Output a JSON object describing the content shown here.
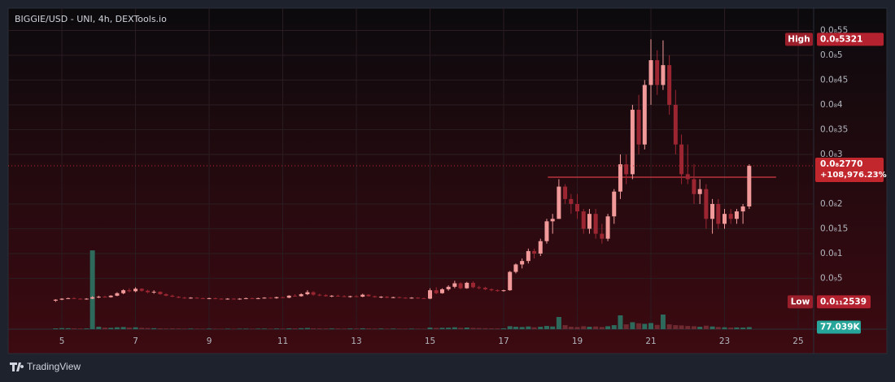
{
  "chart_data": {
    "type": "candlestick",
    "title": "BIGGIE/USD - UNI, 4h, DEXTools.io",
    "up_color": "#f29a9a",
    "down_color": "#9b2632",
    "volume_up_color": "#2e6a5c",
    "volume_down_color": "#6e2a30",
    "grid": true,
    "xlim": [
      3.54,
      25.42
    ],
    "xticks": [
      5,
      7,
      9,
      11,
      13,
      15,
      17,
      19,
      21,
      23,
      25
    ],
    "ylim": [
      -5.25e-11,
      5.95e-10
    ],
    "yticks": [
      {
        "value": 5e-11,
        "label": "0.0₉5"
      },
      {
        "value": 1e-10,
        "label": "0.0₈1"
      },
      {
        "value": 1.5e-10,
        "label": "0.0₈15"
      },
      {
        "value": 2e-10,
        "label": "0.0₈2"
      },
      {
        "value": 3e-10,
        "label": "0.0₈3"
      },
      {
        "value": 3.5e-10,
        "label": "0.0₈35"
      },
      {
        "value": 4e-10,
        "label": "0.0₈4"
      },
      {
        "value": 4.5e-10,
        "label": "0.0₈45"
      },
      {
        "value": 5e-10,
        "label": "0.0₈5"
      },
      {
        "value": 5.5e-10,
        "label": "0.0₈55"
      }
    ],
    "vlim": [
      0,
      3500000
    ],
    "x": [
      4.83,
      5,
      5.17,
      5.33,
      5.5,
      5.67,
      5.83,
      6,
      6.17,
      6.33,
      6.5,
      6.67,
      6.83,
      7,
      7.17,
      7.33,
      7.5,
      7.67,
      7.83,
      8,
      8.17,
      8.33,
      8.5,
      8.67,
      8.83,
      9,
      9.17,
      9.33,
      9.5,
      9.67,
      9.83,
      10,
      10.17,
      10.33,
      10.5,
      10.67,
      10.83,
      11,
      11.17,
      11.33,
      11.5,
      11.67,
      11.83,
      12,
      12.17,
      12.33,
      12.5,
      12.67,
      12.83,
      13,
      13.17,
      13.33,
      13.5,
      13.67,
      13.83,
      14,
      14.17,
      14.33,
      14.5,
      14.67,
      14.83,
      15,
      15.17,
      15.33,
      15.5,
      15.67,
      15.83,
      16,
      16.17,
      16.33,
      16.5,
      16.67,
      16.83,
      17,
      17.17,
      17.33,
      17.5,
      17.67,
      17.83,
      18,
      18.17,
      18.33,
      18.5,
      18.67,
      18.83,
      19,
      19.17,
      19.33,
      19.5,
      19.67,
      19.83,
      20,
      20.17,
      20.33,
      20.5,
      20.67,
      20.83,
      21,
      21.17,
      21.33,
      21.5,
      21.67,
      21.83,
      22,
      22.17,
      22.33,
      22.5,
      22.67,
      22.83,
      23,
      23.17,
      23.33,
      23.5,
      23.67
    ],
    "ohlc": [
      [
        5e-12,
        8e-12,
        2.539e-12,
        7e-12
      ],
      [
        7e-12,
        1e-11,
        6e-12,
        9e-12
      ],
      [
        9e-12,
        1.1e-11,
        8e-12,
        1e-11
      ],
      [
        1e-11,
        1.2e-11,
        8e-12,
        9e-12
      ],
      [
        9e-12,
        1e-11,
        7e-12,
        8e-12
      ],
      [
        8e-12,
        1e-11,
        7e-12,
        9e-12
      ],
      [
        9e-12,
        1.4e-11,
        8e-12,
        1.2e-11
      ],
      [
        1.2e-11,
        1.5e-11,
        1e-11,
        1.3e-11
      ],
      [
        1.3e-11,
        1.5e-11,
        1.1e-11,
        1.2e-11
      ],
      [
        1.2e-11,
        1.6e-11,
        1.1e-11,
        1.5e-11
      ],
      [
        1.5e-11,
        2.2e-11,
        1.4e-11,
        2e-11
      ],
      [
        2e-11,
        2.8e-11,
        1.8e-11,
        2.6e-11
      ],
      [
        2.6e-11,
        3e-11,
        2.2e-11,
        2.4e-11
      ],
      [
        2.4e-11,
        3.2e-11,
        2.2e-11,
        2.9e-11
      ],
      [
        2.9e-11,
        3e-11,
        2.3e-11,
        2.5e-11
      ],
      [
        2.5e-11,
        2.7e-11,
        2e-11,
        2.2e-11
      ],
      [
        2.2e-11,
        2.6e-11,
        1.9e-11,
        2.3e-11
      ],
      [
        2.3e-11,
        2.4e-11,
        1.7e-11,
        1.8e-11
      ],
      [
        1.8e-11,
        2e-11,
        1.4e-11,
        1.5e-11
      ],
      [
        1.5e-11,
        1.7e-11,
        1.2e-11,
        1.3e-11
      ],
      [
        1.3e-11,
        1.4e-11,
        1e-11,
        1.1e-11
      ],
      [
        1.1e-11,
        1.3e-11,
        9e-12,
        1e-11
      ],
      [
        1e-11,
        1.2e-11,
        9e-12,
        1.1e-11
      ],
      [
        1.1e-11,
        1.2e-11,
        9e-12,
        1e-11
      ],
      [
        1e-11,
        1.1e-11,
        8e-12,
        9e-12
      ],
      [
        9e-12,
        1.1e-11,
        8e-12,
        1e-11
      ],
      [
        1e-11,
        1.1e-11,
        8e-12,
        9e-12
      ],
      [
        9e-12,
        1e-11,
        7e-12,
        8e-12
      ],
      [
        8e-12,
        1e-11,
        7e-12,
        9e-12
      ],
      [
        9e-12,
        1e-11,
        7e-12,
        8e-12
      ],
      [
        8e-12,
        1e-11,
        7e-12,
        9e-12
      ],
      [
        9e-12,
        1.1e-11,
        8e-12,
        1e-11
      ],
      [
        1e-11,
        1.1e-11,
        8e-12,
        9e-12
      ],
      [
        9e-12,
        1.1e-11,
        8e-12,
        1e-11
      ],
      [
        1e-11,
        1.2e-11,
        9e-12,
        1.1e-11
      ],
      [
        1.1e-11,
        1.2e-11,
        9e-12,
        1e-11
      ],
      [
        1e-11,
        1.3e-11,
        9e-12,
        1.2e-11
      ],
      [
        1.2e-11,
        1.3e-11,
        1e-11,
        1.1e-11
      ],
      [
        1.1e-11,
        1.6e-11,
        1e-11,
        1.5e-11
      ],
      [
        1.5e-11,
        1.8e-11,
        1.3e-11,
        1.4e-11
      ],
      [
        1.4e-11,
        2e-11,
        1.3e-11,
        1.8e-11
      ],
      [
        1.8e-11,
        2.6e-11,
        1.6e-11,
        2.2e-11
      ],
      [
        2.2e-11,
        2.4e-11,
        1.5e-11,
        1.7e-11
      ],
      [
        1.7e-11,
        1.9e-11,
        1.4e-11,
        1.6e-11
      ],
      [
        1.6e-11,
        1.8e-11,
        1.3e-11,
        1.4e-11
      ],
      [
        1.4e-11,
        1.6e-11,
        1.2e-11,
        1.5e-11
      ],
      [
        1.5e-11,
        1.7e-11,
        1.3e-11,
        1.4e-11
      ],
      [
        1.4e-11,
        1.6e-11,
        1.2e-11,
        1.3e-11
      ],
      [
        1.3e-11,
        1.5e-11,
        1.1e-11,
        1.4e-11
      ],
      [
        1.4e-11,
        1.6e-11,
        1.2e-11,
        1.3e-11
      ],
      [
        1.3e-11,
        1.9e-11,
        1.2e-11,
        1.7e-11
      ],
      [
        1.7e-11,
        1.8e-11,
        1.3e-11,
        1.4e-11
      ],
      [
        1.4e-11,
        1.5e-11,
        1.1e-11,
        1.2e-11
      ],
      [
        1.2e-11,
        1.4e-11,
        1e-11,
        1.3e-11
      ],
      [
        1.3e-11,
        1.4e-11,
        1e-11,
        1.1e-11
      ],
      [
        1.1e-11,
        1.3e-11,
        1e-11,
        1.2e-11
      ],
      [
        1.2e-11,
        1.3e-11,
        1e-11,
        1.1e-11
      ],
      [
        1.1e-11,
        1.2e-11,
        9e-12,
        1e-11
      ],
      [
        1e-11,
        1.2e-11,
        9e-12,
        1.1e-11
      ],
      [
        1.1e-11,
        1.2e-11,
        9e-12,
        1e-11
      ],
      [
        1e-11,
        1.1e-11,
        8e-12,
        9e-12
      ],
      [
        9e-12,
        3e-11,
        8e-12,
        2.6e-11
      ],
      [
        2.6e-11,
        3.2e-11,
        1.8e-11,
        2e-11
      ],
      [
        2e-11,
        3e-11,
        1.9e-11,
        2.8e-11
      ],
      [
        2.8e-11,
        3.6e-11,
        2.5e-11,
        3.3e-11
      ],
      [
        3.3e-11,
        4.5e-11,
        3e-11,
        4e-11
      ],
      [
        4e-11,
        4.2e-11,
        2.8e-11,
        3e-11
      ],
      [
        3e-11,
        4.3e-11,
        2.9e-11,
        4.1e-11
      ],
      [
        4.1e-11,
        4.4e-11,
        3e-11,
        3.2e-11
      ],
      [
        3.2e-11,
        3.5e-11,
        2.8e-11,
        3.1e-11
      ],
      [
        3.1e-11,
        3.3e-11,
        2.6e-11,
        2.8e-11
      ],
      [
        2.8e-11,
        3e-11,
        2.4e-11,
        2.6e-11
      ],
      [
        2.6e-11,
        2.8e-11,
        2.3e-11,
        2.5e-11
      ],
      [
        2.5e-11,
        2.7e-11,
        2.3e-11,
        2.6e-11
      ],
      [
        2.6e-11,
        6.5e-11,
        2.5e-11,
        6.3e-11
      ],
      [
        6.3e-11,
        8e-11,
        6e-11,
        7.8e-11
      ],
      [
        7.8e-11,
        9e-11,
        7e-11,
        8.5e-11
      ],
      [
        8.5e-11,
        1.1e-10,
        8e-11,
        1.05e-10
      ],
      [
        1.05e-10,
        1.1e-10,
        9e-11,
        1e-10
      ],
      [
        1e-10,
        1.3e-10,
        9.5e-11,
        1.25e-10
      ],
      [
        1.25e-10,
        1.7e-10,
        1.2e-10,
        1.65e-10
      ],
      [
        1.65e-10,
        1.8e-10,
        1.4e-10,
        1.7e-10
      ],
      [
        1.7e-10,
        2.5e-10,
        1.7e-10,
        2.35e-10
      ],
      [
        2.35e-10,
        2.4e-10,
        2e-10,
        2.1e-10
      ],
      [
        2.1e-10,
        2.2e-10,
        1.8e-10,
        2e-10
      ],
      [
        2e-10,
        2.2e-10,
        1.7e-10,
        1.85e-10
      ],
      [
        1.85e-10,
        1.9e-10,
        1.4e-10,
        1.5e-10
      ],
      [
        1.5e-10,
        1.9e-10,
        1.4e-10,
        1.8e-10
      ],
      [
        1.8e-10,
        1.9e-10,
        1.3e-10,
        1.4e-10
      ],
      [
        1.4e-10,
        1.6e-10,
        1.2e-10,
        1.3e-10
      ],
      [
        1.3e-10,
        1.8e-10,
        1.25e-10,
        1.75e-10
      ],
      [
        1.75e-10,
        2.3e-10,
        1.6e-10,
        2.25e-10
      ],
      [
        2.25e-10,
        3e-10,
        2.1e-10,
        2.8e-10
      ],
      [
        2.8e-10,
        3e-10,
        2.4e-10,
        2.6e-10
      ],
      [
        2.6e-10,
        4e-10,
        2.5e-10,
        3.9e-10
      ],
      [
        3.9e-10,
        4.2e-10,
        3e-10,
        3.2e-10
      ],
      [
        3.2e-10,
        4.5e-10,
        3.1e-10,
        4.4e-10
      ],
      [
        4.4e-10,
        5.321e-10,
        4e-10,
        4.9e-10
      ],
      [
        4.9e-10,
        5.1e-10,
        4.2e-10,
        4.4e-10
      ],
      [
        4.4e-10,
        5.3e-10,
        4.3e-10,
        4.8e-10
      ],
      [
        4.8e-10,
        5e-10,
        3.8e-10,
        4e-10
      ],
      [
        4e-10,
        4.3e-10,
        3e-10,
        3.2e-10
      ],
      [
        3.2e-10,
        3.4e-10,
        2.4e-10,
        2.6e-10
      ],
      [
        2.6e-10,
        3.2e-10,
        2.4e-10,
        2.5e-10
      ],
      [
        2.5e-10,
        2.8e-10,
        2e-10,
        2.2e-10
      ],
      [
        2.2e-10,
        2.5e-10,
        2e-10,
        2.3e-10
      ],
      [
        2.3e-10,
        2.4e-10,
        1.5e-10,
        1.7e-10
      ],
      [
        1.7e-10,
        2.1e-10,
        1.4e-10,
        2e-10
      ],
      [
        2e-10,
        2.1e-10,
        1.5e-10,
        1.6e-10
      ],
      [
        1.6e-10,
        1.9e-10,
        1.5e-10,
        1.8e-10
      ],
      [
        1.8e-10,
        1.9e-10,
        1.6e-10,
        1.7e-10
      ],
      [
        1.7e-10,
        1.9e-10,
        1.6e-10,
        1.85e-10
      ],
      [
        1.85e-10,
        2e-10,
        1.6e-10,
        1.95e-10
      ],
      [
        1.95e-10,
        2.8e-10,
        1.9e-10,
        2.77e-10
      ]
    ],
    "volume": [
      30000,
      40000,
      35000,
      30000,
      25000,
      28000,
      2950000,
      90000,
      60000,
      50000,
      70000,
      80000,
      60000,
      70000,
      50000,
      40000,
      35000,
      30000,
      25000,
      30000,
      25000,
      20000,
      22000,
      20000,
      18000,
      20000,
      18000,
      16000,
      18000,
      16000,
      18000,
      20000,
      18000,
      20000,
      22000,
      20000,
      24000,
      22000,
      30000,
      28000,
      35000,
      45000,
      30000,
      28000,
      25000,
      26000,
      24000,
      22000,
      25000,
      24000,
      32000,
      26000,
      22000,
      24000,
      20000,
      22000,
      20000,
      18000,
      20000,
      18000,
      16000,
      60000,
      45000,
      50000,
      55000,
      70000,
      50000,
      60000,
      45000,
      40000,
      35000,
      30000,
      28000,
      30000,
      110000,
      90000,
      80000,
      100000,
      70000,
      90000,
      120000,
      100000,
      456000,
      150000,
      90000,
      80000,
      110000,
      90000,
      100000,
      80000,
      110000,
      150000,
      517000,
      180000,
      260000,
      220000,
      200000,
      230000,
      160000,
      548000,
      180000,
      150000,
      140000,
      120000,
      110000,
      90000,
      130000,
      100000,
      80000,
      70000,
      60000,
      65000,
      60000,
      77039
    ],
    "level_line": {
      "value": 2.54e-10,
      "from": 18.2,
      "to": 24.4
    },
    "high": {
      "label": "High",
      "value": 5.321e-10,
      "value_label": "0.0₈5321"
    },
    "low": {
      "label": "Low",
      "value": 2.539e-12,
      "value_label": "0.0₁₁2539"
    },
    "last": {
      "value": 2.77e-10,
      "value_label": "0.0₈2770",
      "change": "+108,976.23%"
    },
    "last_volume": {
      "value": 77039,
      "label": "77.039K"
    }
  },
  "footer": {
    "brand": "TradingView"
  }
}
